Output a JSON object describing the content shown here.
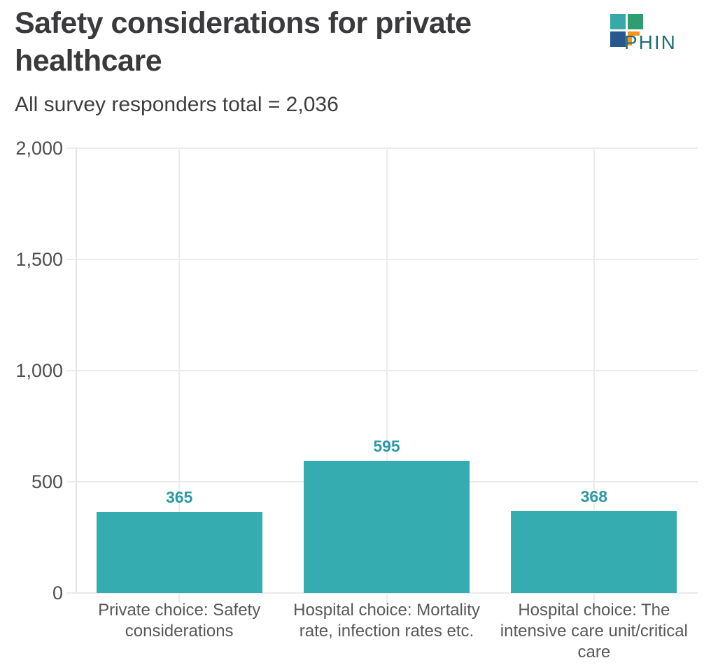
{
  "header": {
    "title": "Safety considerations for private healthcare",
    "subtitle": "All survey responders total = 2,036",
    "logo": {
      "text": "PHIN",
      "colors": {
        "teal_square": "#38a8a9",
        "green_square": "#2d9e70",
        "blue_square": "#27578f",
        "orange_corner": "#f7941e",
        "text": "#1d6f7a"
      }
    }
  },
  "chart_data": {
    "type": "bar",
    "title": "Safety considerations for private healthcare",
    "subtitle": "All survey responders total = 2,036",
    "categories": [
      "Private choice: Safety considerations",
      "Hospital choice: Mortality rate, infection rates etc.",
      "Hospital choice: The intensive care unit/critical care"
    ],
    "values": [
      365,
      595,
      368
    ],
    "data_labels": [
      "365",
      "595",
      "368"
    ],
    "xlabel": "",
    "ylabel": "",
    "ylim": [
      0,
      2000
    ],
    "yticks": [
      {
        "value": 0,
        "label": "0"
      },
      {
        "value": 500,
        "label": "500"
      },
      {
        "value": 1000,
        "label": "1,000"
      },
      {
        "value": 1500,
        "label": "1,500"
      },
      {
        "value": 2000,
        "label": "2,000"
      }
    ],
    "grid": "horizontal value gridlines plus vertical category-center gridlines",
    "legend_position": "none",
    "colors": {
      "bar": "#34acb0",
      "data_label": "#2b9aa4",
      "gridline": "#ebebeb",
      "axis_label": "#4f4f52",
      "category_label": "#58585a"
    }
  }
}
